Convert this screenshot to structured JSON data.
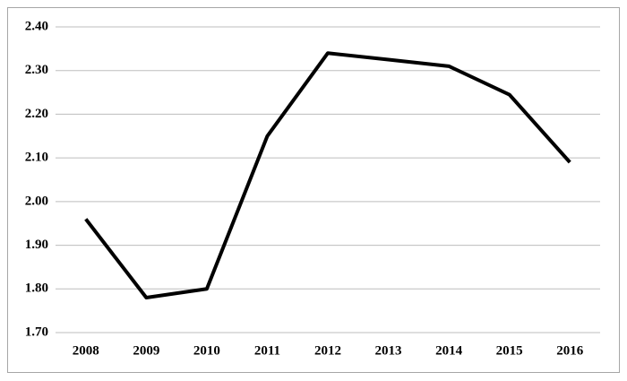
{
  "chart_data": {
    "type": "line",
    "categories": [
      "2008",
      "2009",
      "2010",
      "2011",
      "2012",
      "2013",
      "2014",
      "2015",
      "2016"
    ],
    "values": [
      1.96,
      1.78,
      1.8,
      2.15,
      2.34,
      2.325,
      2.31,
      2.245,
      2.09
    ],
    "color": "#000000",
    "ylim": [
      1.7,
      2.4
    ],
    "yticks": [
      {
        "value": 1.7,
        "label": "1.70"
      },
      {
        "value": 1.8,
        "label": "1.80"
      },
      {
        "value": 1.9,
        "label": "1.90"
      },
      {
        "value": 2.0,
        "label": "2.00"
      },
      {
        "value": 2.1,
        "label": "2.10"
      },
      {
        "value": 2.2,
        "label": "2.20"
      },
      {
        "value": 2.3,
        "label": "2.30"
      },
      {
        "value": 2.4,
        "label": "2.40"
      }
    ],
    "grid": true
  }
}
